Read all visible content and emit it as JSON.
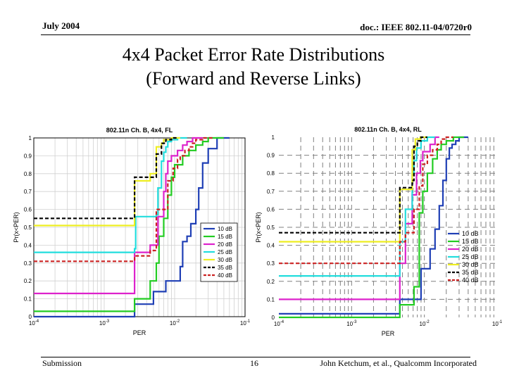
{
  "header": {
    "date": "July 2004",
    "doc": "doc.: IEEE 802.11-04/0720r0"
  },
  "slide": {
    "title_line1": "4x4 Packet Error Rate Distributions",
    "title_line2": "(Forward and Reverse Links)"
  },
  "footer": {
    "left": "Submission",
    "page": "16",
    "right": "John Ketchum, et al., Qualcomm Incorporated"
  },
  "chart_data": [
    {
      "type": "line",
      "title": "802.11n Ch. B, 4x4, FL",
      "xlabel": "PER",
      "ylabel": "Pr(x<PER)",
      "xscale": "log",
      "xlim": [
        0.0001,
        0.1
      ],
      "ylim": [
        0,
        1
      ],
      "xticks": [
        "10-4",
        "10-3",
        "10-2",
        "10-1"
      ],
      "yticks": [
        "0",
        "0.1",
        "0.2",
        "0.3",
        "0.4",
        "0.5",
        "0.6",
        "0.7",
        "0.8",
        "0.9",
        "1"
      ],
      "legend_position": "right",
      "series": [
        {
          "name": "10 dB",
          "color": "#1f3fb5",
          "dashed": false,
          "x": [
            0.0001,
            0.0027,
            0.0027,
            0.005,
            0.005,
            0.0075,
            0.0075,
            0.012,
            0.012,
            0.013,
            0.013,
            0.015,
            0.015,
            0.017,
            0.017,
            0.02,
            0.02,
            0.022,
            0.022,
            0.025,
            0.025,
            0.03,
            0.03,
            0.04,
            0.04,
            0.06
          ],
          "y": [
            0.0,
            0.0,
            0.07,
            0.07,
            0.14,
            0.14,
            0.2,
            0.2,
            0.28,
            0.28,
            0.42,
            0.42,
            0.45,
            0.45,
            0.52,
            0.52,
            0.6,
            0.6,
            0.72,
            0.72,
            0.86,
            0.86,
            0.94,
            0.94,
            1.0,
            1.0
          ]
        },
        {
          "name": "15 dB",
          "color": "#22cc22",
          "dashed": false,
          "x": [
            0.0001,
            0.0027,
            0.0027,
            0.0045,
            0.0045,
            0.0055,
            0.0055,
            0.006,
            0.006,
            0.007,
            0.007,
            0.008,
            0.008,
            0.009,
            0.009,
            0.01,
            0.01,
            0.013,
            0.013,
            0.016,
            0.016,
            0.02,
            0.02,
            0.025,
            0.025,
            0.03,
            0.03,
            0.05
          ],
          "y": [
            0.03,
            0.03,
            0.1,
            0.1,
            0.2,
            0.2,
            0.3,
            0.3,
            0.45,
            0.45,
            0.55,
            0.55,
            0.68,
            0.68,
            0.78,
            0.78,
            0.85,
            0.85,
            0.9,
            0.9,
            0.93,
            0.93,
            0.96,
            0.96,
            0.98,
            0.98,
            1.0,
            1.0
          ]
        },
        {
          "name": "20 dB",
          "color": "#dd22cc",
          "dashed": false,
          "x": [
            0.0001,
            0.0027,
            0.0027,
            0.0045,
            0.0045,
            0.0058,
            0.0058,
            0.007,
            0.007,
            0.0075,
            0.0075,
            0.008,
            0.008,
            0.009,
            0.009,
            0.011,
            0.011,
            0.013,
            0.013,
            0.015,
            0.015,
            0.018,
            0.018,
            0.025
          ],
          "y": [
            0.13,
            0.13,
            0.36,
            0.36,
            0.4,
            0.4,
            0.56,
            0.56,
            0.7,
            0.7,
            0.8,
            0.8,
            0.87,
            0.87,
            0.9,
            0.9,
            0.93,
            0.93,
            0.96,
            0.96,
            0.98,
            0.98,
            1.0,
            1.0
          ]
        },
        {
          "name": "25 dB",
          "color": "#22dddd",
          "dashed": false,
          "x": [
            0.0001,
            0.0027,
            0.0027,
            0.0028,
            0.0028,
            0.0055,
            0.0055,
            0.0058,
            0.0058,
            0.0065,
            0.0065,
            0.007,
            0.007,
            0.0075,
            0.0075,
            0.008,
            0.008,
            0.009,
            0.009,
            0.011,
            0.011,
            0.015
          ],
          "y": [
            0.36,
            0.36,
            0.38,
            0.38,
            0.56,
            0.56,
            0.57,
            0.57,
            0.72,
            0.72,
            0.87,
            0.87,
            0.92,
            0.92,
            0.95,
            0.95,
            0.98,
            0.98,
            0.99,
            0.99,
            1.0,
            1.0
          ]
        },
        {
          "name": "30 dB",
          "color": "#eeee22",
          "dashed": false,
          "x": [
            0.0001,
            0.0027,
            0.0027,
            0.0045,
            0.0045,
            0.0055,
            0.0055,
            0.0065,
            0.0065,
            0.007,
            0.007,
            0.009,
            0.009,
            0.012
          ],
          "y": [
            0.51,
            0.51,
            0.76,
            0.76,
            0.8,
            0.8,
            0.95,
            0.95,
            0.97,
            0.97,
            0.99,
            0.99,
            1.0,
            1.0
          ]
        },
        {
          "name": "35 dB",
          "color": "#000000",
          "dashed": true,
          "x": [
            0.0001,
            0.0027,
            0.0027,
            0.0055,
            0.0055,
            0.0065,
            0.0065,
            0.0075,
            0.0075,
            0.009,
            0.009,
            0.011
          ],
          "y": [
            0.55,
            0.55,
            0.78,
            0.78,
            0.91,
            0.91,
            0.97,
            0.97,
            0.99,
            0.99,
            1.0,
            1.0
          ]
        },
        {
          "name": "40 dB",
          "color": "#cc2222",
          "dashed": true,
          "x": [
            0.0001,
            0.0027,
            0.0027,
            0.0045,
            0.0045,
            0.0055,
            0.0055,
            0.008,
            0.008,
            0.0095,
            0.0095,
            0.011,
            0.011,
            0.012,
            0.012,
            0.014,
            0.014,
            0.016,
            0.016,
            0.018,
            0.018,
            0.02,
            0.02,
            0.025,
            0.025,
            0.035
          ],
          "y": [
            0.31,
            0.31,
            0.34,
            0.34,
            0.37,
            0.37,
            0.6,
            0.6,
            0.76,
            0.76,
            0.83,
            0.83,
            0.88,
            0.88,
            0.9,
            0.9,
            0.93,
            0.93,
            0.95,
            0.95,
            0.97,
            0.97,
            0.99,
            0.99,
            1.0,
            1.0
          ]
        }
      ]
    },
    {
      "type": "line",
      "title": "802.11n Ch. B, 4x4, RL",
      "xlabel": "PER",
      "ylabel": "Pr(x<PER)",
      "xscale": "log",
      "xlim": [
        0.0001,
        0.1
      ],
      "ylim": [
        0,
        1
      ],
      "xticks": [
        "10-4",
        "10-3",
        "10-2",
        "10-1"
      ],
      "yticks": [
        "0",
        "0.1",
        "0.2",
        "0.3",
        "0.4",
        "0.5",
        "0.6",
        "0.7",
        "0.8",
        "0.9",
        "1"
      ],
      "legend_position": "right",
      "series": [
        {
          "name": "10 dB",
          "color": "#1f3fb5",
          "dashed": false,
          "x": [
            0.0001,
            0.0046,
            0.0046,
            0.009,
            0.009,
            0.012,
            0.012,
            0.014,
            0.014,
            0.016,
            0.016,
            0.018,
            0.018,
            0.02,
            0.02,
            0.022,
            0.022,
            0.024,
            0.024,
            0.027,
            0.027,
            0.03,
            0.03,
            0.04
          ],
          "y": [
            0.02,
            0.02,
            0.1,
            0.1,
            0.27,
            0.27,
            0.38,
            0.38,
            0.49,
            0.49,
            0.62,
            0.62,
            0.76,
            0.76,
            0.88,
            0.88,
            0.94,
            0.94,
            0.96,
            0.96,
            0.98,
            0.98,
            1.0,
            1.0
          ]
        },
        {
          "name": "15 dB",
          "color": "#22cc22",
          "dashed": false,
          "x": [
            0.0001,
            0.0046,
            0.0046,
            0.0072,
            0.0072,
            0.0085,
            0.0085,
            0.0095,
            0.0095,
            0.011,
            0.011,
            0.013,
            0.013,
            0.015,
            0.015,
            0.017,
            0.017,
            0.02,
            0.02,
            0.025,
            0.025,
            0.035
          ],
          "y": [
            0.0,
            0.0,
            0.07,
            0.07,
            0.17,
            0.17,
            0.58,
            0.58,
            0.7,
            0.7,
            0.8,
            0.8,
            0.88,
            0.88,
            0.93,
            0.93,
            0.96,
            0.96,
            0.98,
            0.98,
            1.0,
            1.0
          ]
        },
        {
          "name": "20 dB",
          "color": "#dd22cc",
          "dashed": false,
          "x": [
            0.0001,
            0.0046,
            0.0046,
            0.0055,
            0.0055,
            0.0068,
            0.0068,
            0.0078,
            0.0078,
            0.0088,
            0.0088,
            0.0095,
            0.0095,
            0.012,
            0.012,
            0.014,
            0.014,
            0.016
          ],
          "y": [
            0.1,
            0.1,
            0.3,
            0.3,
            0.52,
            0.52,
            0.68,
            0.68,
            0.8,
            0.8,
            0.87,
            0.87,
            0.92,
            0.92,
            0.96,
            0.96,
            1.0,
            1.0
          ]
        },
        {
          "name": "25 dB",
          "color": "#22dddd",
          "dashed": false,
          "x": [
            0.0001,
            0.0046,
            0.0046,
            0.0055,
            0.0055,
            0.0068,
            0.0068,
            0.0072,
            0.0072,
            0.0078,
            0.0078,
            0.009,
            0.009,
            0.011,
            0.011,
            0.014
          ],
          "y": [
            0.23,
            0.23,
            0.42,
            0.42,
            0.6,
            0.6,
            0.8,
            0.8,
            0.87,
            0.87,
            0.94,
            0.94,
            0.98,
            0.98,
            1.0,
            1.0
          ]
        },
        {
          "name": "30 dB",
          "color": "#eeee22",
          "dashed": false,
          "x": [
            0.0001,
            0.0046,
            0.0046,
            0.0068,
            0.0068,
            0.0075,
            0.0075,
            0.0088,
            0.0088,
            0.011
          ],
          "y": [
            0.42,
            0.42,
            0.71,
            0.71,
            0.93,
            0.93,
            0.99,
            0.99,
            1.0,
            1.0
          ]
        },
        {
          "name": "35 dB",
          "color": "#000000",
          "dashed": true,
          "x": [
            0.0001,
            0.0046,
            0.0046,
            0.0068,
            0.0068,
            0.0072,
            0.0072,
            0.008,
            0.008,
            0.009,
            0.009,
            0.011
          ],
          "y": [
            0.47,
            0.47,
            0.72,
            0.72,
            0.76,
            0.76,
            0.95,
            0.95,
            0.98,
            0.98,
            1.0,
            1.0
          ]
        },
        {
          "name": "40 dB",
          "color": "#cc2222",
          "dashed": true,
          "x": [
            0.0001,
            0.0046,
            0.0046,
            0.0055,
            0.0055,
            0.0072,
            0.0072,
            0.0085,
            0.0085,
            0.0095,
            0.0095,
            0.011,
            0.011,
            0.013,
            0.013,
            0.015,
            0.015,
            0.017,
            0.017,
            0.02,
            0.02,
            0.025
          ],
          "y": [
            0.3,
            0.3,
            0.42,
            0.42,
            0.47,
            0.47,
            0.6,
            0.6,
            0.73,
            0.73,
            0.85,
            0.85,
            0.9,
            0.9,
            0.93,
            0.93,
            0.96,
            0.96,
            0.99,
            0.99,
            1.0,
            1.0
          ]
        }
      ]
    }
  ]
}
